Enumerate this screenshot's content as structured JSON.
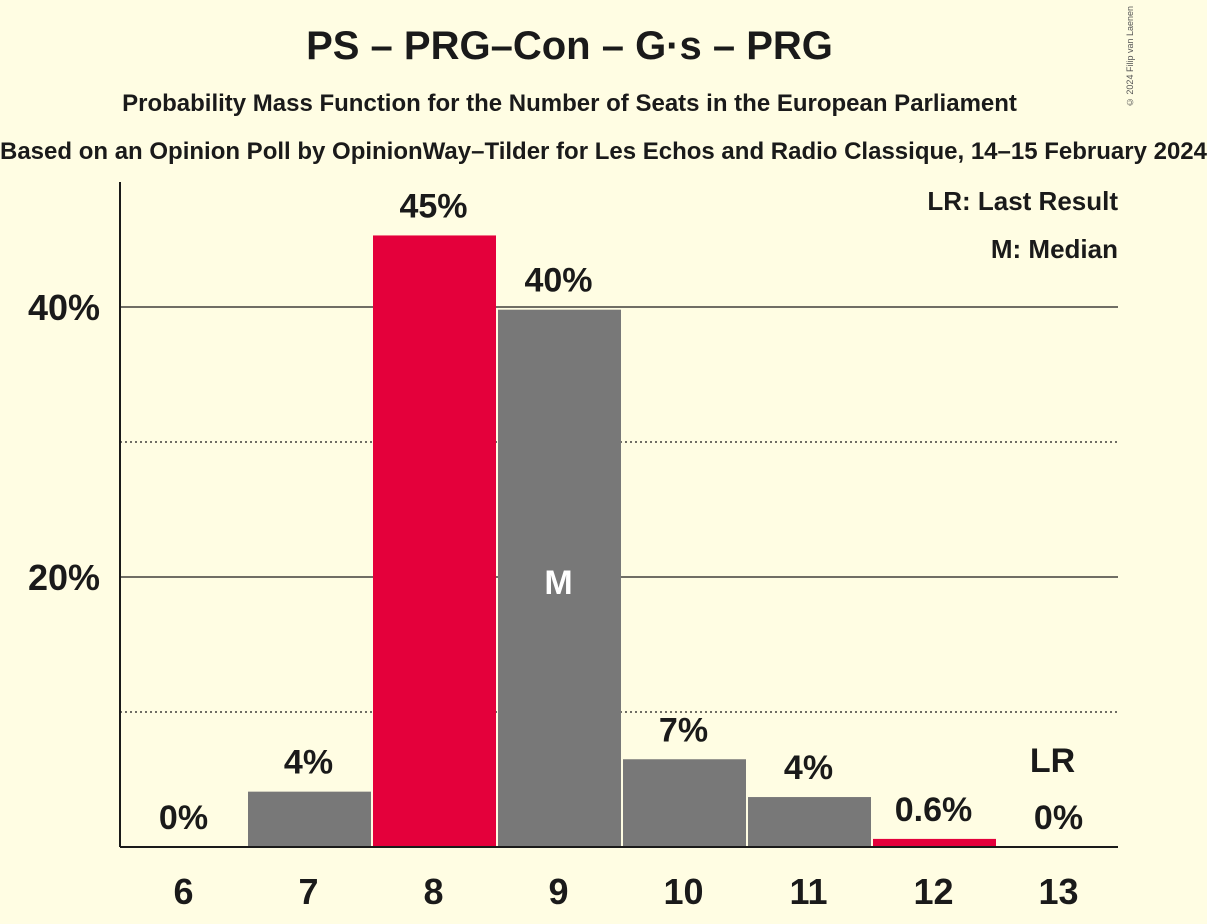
{
  "header": {
    "title": "PS – PRG–Con – G·s – PRG",
    "subtitle": "Probability Mass Function for the Number of Seats in the European Parliament",
    "source": "Based on an Opinion Poll by OpinionWay–Tilder for Les Echos and Radio Classique, 14–15 February 2024",
    "copyright": "© 2024 Filip van Laenen"
  },
  "legend": {
    "lr": "LR: Last Result",
    "m": "M: Median"
  },
  "colors": {
    "background": "#FFFDE3",
    "bar_default": "#787878",
    "bar_highlight": "#E4003B",
    "text": "#1a1a1a"
  },
  "chart_data": {
    "type": "bar",
    "title": "PS – PRG–Con – G·s – PRG",
    "categories": [
      "6",
      "7",
      "8",
      "9",
      "10",
      "11",
      "12",
      "13"
    ],
    "values": [
      0,
      4.1,
      45.3,
      39.8,
      6.5,
      3.7,
      0.6,
      0
    ],
    "value_labels": [
      "0%",
      "4%",
      "45%",
      "40%",
      "7%",
      "4%",
      "0.6%",
      "0%"
    ],
    "highlight": [
      "8",
      "12"
    ],
    "median": "9",
    "median_marker": "M",
    "last_result": "13",
    "last_result_marker": "LR",
    "ylim": [
      0,
      49
    ],
    "yticks": [
      20,
      40
    ],
    "ytick_labels": [
      "20%",
      "40%"
    ],
    "minor_gridlines": [
      10,
      30
    ],
    "grid": true,
    "legend_placement": "top-right"
  }
}
